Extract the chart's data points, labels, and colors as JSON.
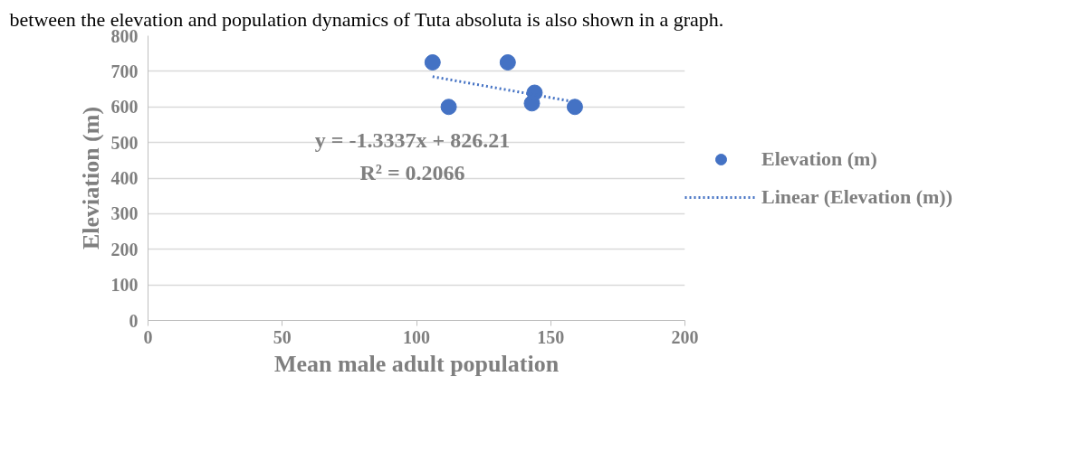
{
  "chart_data": {
    "type": "scatter",
    "xlabel": "Mean male adult population",
    "ylabel": "Eleviation (m)",
    "annotations": [
      "between the elevation and population dynamics of Tuta absoluta is also shown in a graph.",
      "y = -1.3337x + 826.21",
      "R² = 0.2066"
    ],
    "series": [
      {
        "name": "Elevation (m)",
        "type": "scatter",
        "marker": "circle",
        "color": "#4472c4",
        "x": [
          106,
          112,
          134,
          143,
          144,
          159
        ],
        "values": [
          725,
          600,
          725,
          610,
          640,
          600
        ]
      },
      {
        "name": "Linear (Elevation (m))",
        "type": "line",
        "color": "#4472c4",
        "line_style": "dotted",
        "x": [
          106,
          159
        ],
        "values": [
          685,
          614
        ]
      }
    ],
    "xlim": [
      0,
      200
    ],
    "xticks": [
      0,
      50,
      100,
      150,
      200
    ],
    "ylim": [
      0,
      800
    ],
    "yticks": [
      0,
      100,
      200,
      300,
      400,
      500,
      600,
      700,
      800
    ],
    "grid": "y",
    "legend": "right"
  }
}
